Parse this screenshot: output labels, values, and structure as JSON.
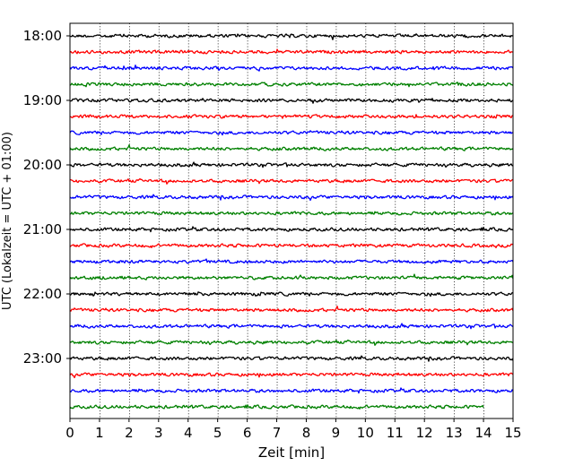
{
  "chart_data": {
    "type": "line",
    "title": "",
    "xlabel": "Zeit  [min]",
    "ylabel": "UTC (Lokalzeit = UTC + 01:00)",
    "xlim": [
      0,
      15
    ],
    "x_ticks": [
      "0",
      "1",
      "2",
      "3",
      "4",
      "5",
      "6",
      "7",
      "8",
      "9",
      "10",
      "11",
      "12",
      "13",
      "14",
      "15"
    ],
    "y_ticks": [
      "18:00",
      "19:00",
      "20:00",
      "21:00",
      "22:00",
      "23:00"
    ],
    "grid": "vertical dotted lines at each minute",
    "trace_start": "18:00",
    "trace_interval_minutes": 15,
    "trace_count": 24,
    "trace_colors": [
      "#000000",
      "#ff0000",
      "#0000ff",
      "#008000"
    ],
    "last_trace_end_minute": 14,
    "description": "Helicorder seismogram: each row is a 15-minute trace, colors cycle black, red, blue, green"
  }
}
